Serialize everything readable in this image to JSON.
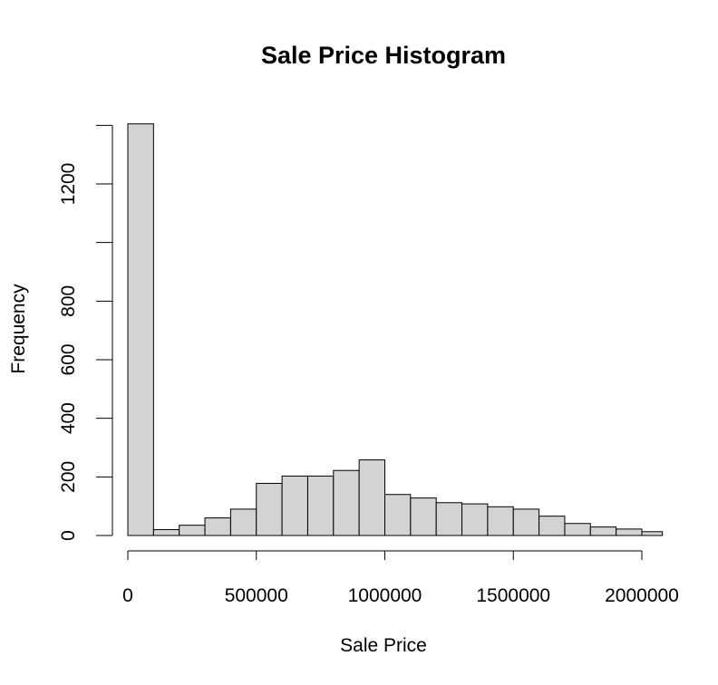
{
  "chart_data": {
    "type": "bar",
    "title": "Sale Price Histogram",
    "xlabel": "Sale Price",
    "ylabel": "Frequency",
    "bin_width": 100000,
    "bins": [
      {
        "start": 0,
        "end": 100000,
        "count": 1405
      },
      {
        "start": 100000,
        "end": 200000,
        "count": 20
      },
      {
        "start": 200000,
        "end": 300000,
        "count": 35
      },
      {
        "start": 300000,
        "end": 400000,
        "count": 60
      },
      {
        "start": 400000,
        "end": 500000,
        "count": 90
      },
      {
        "start": 500000,
        "end": 600000,
        "count": 178
      },
      {
        "start": 600000,
        "end": 700000,
        "count": 203
      },
      {
        "start": 700000,
        "end": 800000,
        "count": 203
      },
      {
        "start": 800000,
        "end": 900000,
        "count": 222
      },
      {
        "start": 900000,
        "end": 1000000,
        "count": 258
      },
      {
        "start": 1000000,
        "end": 1100000,
        "count": 140
      },
      {
        "start": 1100000,
        "end": 1200000,
        "count": 128
      },
      {
        "start": 1200000,
        "end": 1300000,
        "count": 112
      },
      {
        "start": 1300000,
        "end": 1400000,
        "count": 108
      },
      {
        "start": 1400000,
        "end": 1500000,
        "count": 98
      },
      {
        "start": 1500000,
        "end": 1600000,
        "count": 90
      },
      {
        "start": 1600000,
        "end": 1700000,
        "count": 66
      },
      {
        "start": 1700000,
        "end": 1800000,
        "count": 41
      },
      {
        "start": 1800000,
        "end": 1900000,
        "count": 29
      },
      {
        "start": 1900000,
        "end": 2000000,
        "count": 22
      },
      {
        "start": 2000000,
        "end": 2080000,
        "count": 13
      }
    ],
    "xlim": [
      0,
      2080000
    ],
    "ylim": [
      0,
      1405
    ],
    "x_ticks": [
      {
        "value": 0,
        "label": "0"
      },
      {
        "value": 500000,
        "label": "500000"
      },
      {
        "value": 1000000,
        "label": "1000000"
      },
      {
        "value": 1500000,
        "label": "1500000"
      },
      {
        "value": 2000000,
        "label": "2000000"
      }
    ],
    "y_ticks": [
      {
        "value": 0,
        "label": "0"
      },
      {
        "value": 200,
        "label": "200"
      },
      {
        "value": 400,
        "label": "400"
      },
      {
        "value": 600,
        "label": "600"
      },
      {
        "value": 800,
        "label": "800"
      },
      {
        "value": 1000,
        "label": ""
      },
      {
        "value": 1200,
        "label": "1200"
      },
      {
        "value": 1400,
        "label": ""
      }
    ],
    "bar_color": "#d3d3d3",
    "grid": false
  }
}
